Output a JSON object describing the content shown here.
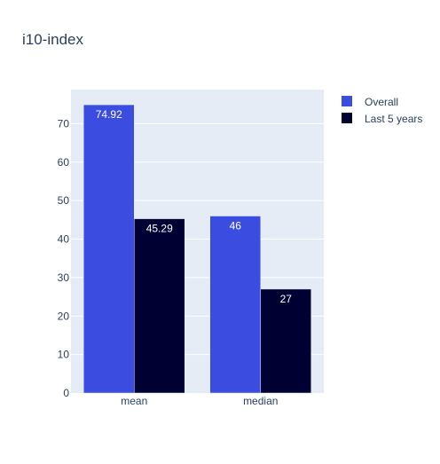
{
  "chart_data": {
    "type": "bar",
    "title": "i10-index",
    "categories": [
      "mean",
      "median"
    ],
    "series": [
      {
        "name": "Overall",
        "values": [
          74.92,
          46
        ],
        "labels": [
          "74.92",
          "46"
        ],
        "color": "#3b4ce0"
      },
      {
        "name": "Last 5 years",
        "values": [
          45.29,
          27
        ],
        "labels": [
          "45.29",
          "27"
        ],
        "color": "#000033"
      }
    ],
    "ylim": [
      0,
      78.86
    ],
    "yticks": [
      0,
      10,
      20,
      30,
      40,
      50,
      60,
      70
    ],
    "grid": true,
    "legend_position": "top-right",
    "plot_background": "#e5ecf6",
    "text_color": "#2a3f5f"
  }
}
